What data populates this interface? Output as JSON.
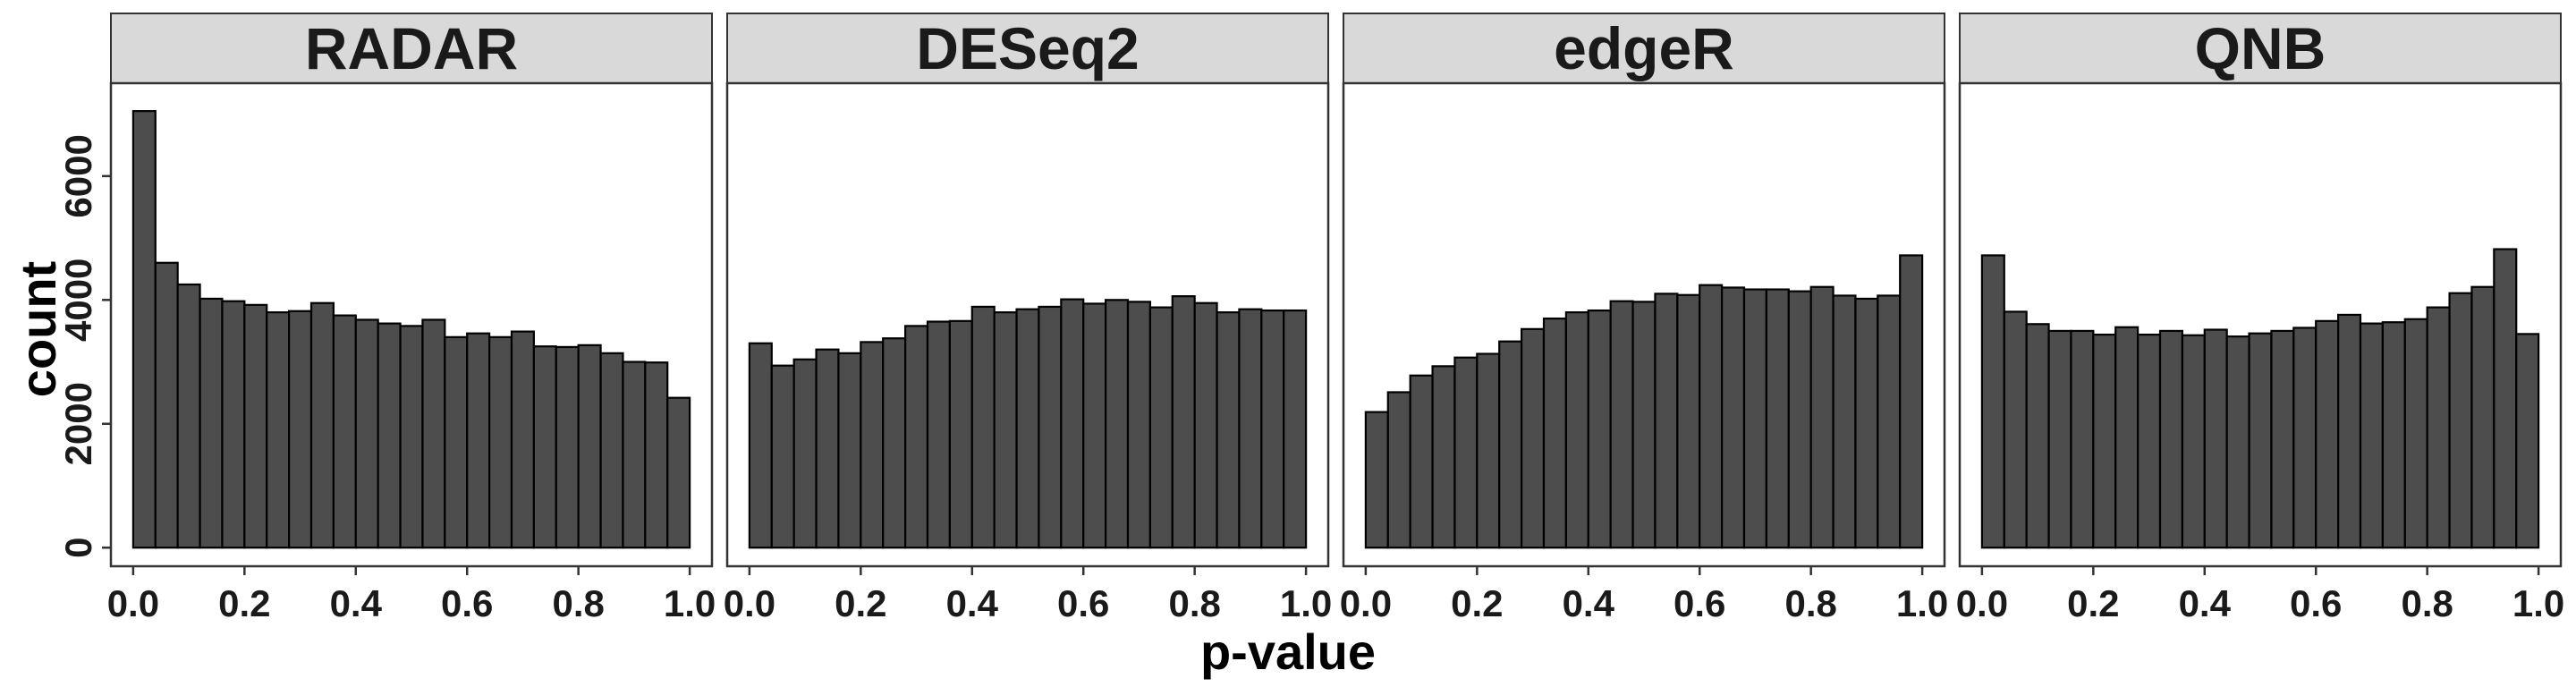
{
  "chart_data": {
    "type": "bar",
    "subtype": "faceted-histogram",
    "xlabel": "p-value",
    "ylabel": "count",
    "xlim": [
      -0.04,
      1.04
    ],
    "ylim": [
      -300,
      7500
    ],
    "x_ticks": [
      "0.0",
      "0.2",
      "0.4",
      "0.6",
      "0.8",
      "1.0"
    ],
    "y_ticks": [
      "0",
      "2000",
      "4000",
      "6000"
    ],
    "bin_edges": [
      0.0,
      0.04,
      0.08,
      0.12,
      0.16,
      0.2,
      0.24,
      0.28,
      0.32,
      0.36,
      0.4,
      0.44,
      0.48,
      0.52,
      0.56,
      0.6,
      0.64,
      0.68,
      0.72,
      0.76,
      0.8,
      0.84,
      0.88,
      0.92,
      0.96,
      1.0
    ],
    "grid": false,
    "bar_color": "#4d4d4d",
    "bar_edge_color": "#000000",
    "strip_color": "#d9d9d9",
    "panels": [
      {
        "title": "RADAR",
        "values": [
          7050,
          4600,
          4250,
          4020,
          3980,
          3920,
          3800,
          3820,
          3950,
          3750,
          3680,
          3620,
          3580,
          3680,
          3400,
          3460,
          3400,
          3490,
          3250,
          3240,
          3270,
          3140,
          3000,
          2990,
          2420
        ]
      },
      {
        "title": "DESeq2",
        "values": [
          3300,
          2940,
          3040,
          3200,
          3140,
          3320,
          3380,
          3580,
          3650,
          3660,
          3890,
          3800,
          3850,
          3890,
          4010,
          3940,
          4000,
          3970,
          3880,
          4060,
          3950,
          3800,
          3850,
          3830,
          3830
        ]
      },
      {
        "title": "edgeR",
        "values": [
          2190,
          2510,
          2780,
          2930,
          3070,
          3130,
          3330,
          3530,
          3700,
          3800,
          3830,
          3980,
          3970,
          4100,
          4080,
          4240,
          4200,
          4170,
          4170,
          4140,
          4210,
          4070,
          4020,
          4070,
          4720
        ]
      },
      {
        "title": "QNB",
        "values": [
          4720,
          3810,
          3610,
          3500,
          3500,
          3440,
          3560,
          3440,
          3500,
          3430,
          3520,
          3410,
          3460,
          3500,
          3550,
          3660,
          3760,
          3620,
          3640,
          3690,
          3880,
          4110,
          4210,
          4820,
          3450
        ]
      }
    ]
  }
}
